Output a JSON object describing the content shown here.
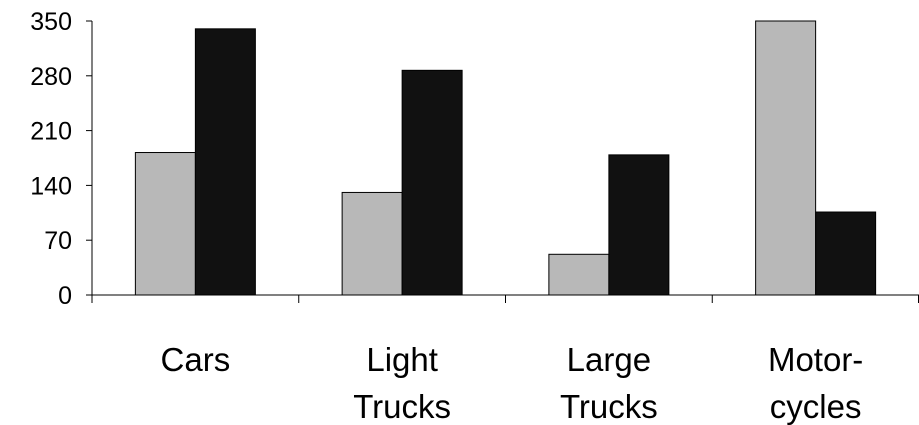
{
  "chart_data": {
    "type": "bar",
    "categories": [
      [
        "Cars"
      ],
      [
        "Light",
        "Trucks"
      ],
      [
        "Large",
        "Trucks"
      ],
      [
        "Motor-",
        "cycles"
      ]
    ],
    "series": [
      {
        "values": [
          182,
          131,
          52,
          350
        ],
        "color": "#b8b8b8"
      },
      {
        "values": [
          340,
          287,
          179,
          106
        ],
        "color": "#111111"
      }
    ],
    "yticks": [
      0,
      70,
      140,
      210,
      280,
      350
    ],
    "ylim": [
      0,
      350
    ],
    "xlabel": "",
    "ylabel": "",
    "title": "",
    "grid": false,
    "legend": "none"
  }
}
